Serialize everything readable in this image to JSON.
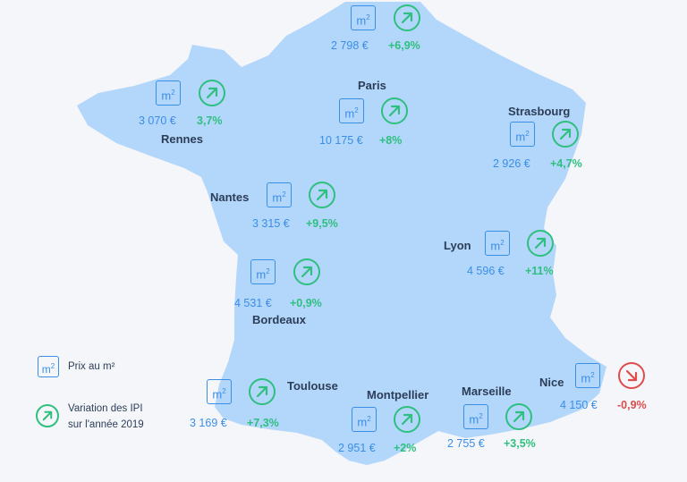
{
  "colors": {
    "map_fill": "#b3d6fb",
    "price": "#3a8ee6",
    "up": "#2fbf7f",
    "down": "#e04b4b",
    "text": "#2c3e57"
  },
  "cities": [
    {
      "id": "lille",
      "name": "",
      "price": "2 798 €",
      "variation": "+6,9%",
      "trend": "up"
    },
    {
      "id": "rennes",
      "name": "Rennes",
      "price": "3 070 €",
      "variation": "3,7%",
      "trend": "up"
    },
    {
      "id": "paris",
      "name": "Paris",
      "price": "10 175 €",
      "variation": "+8%",
      "trend": "up"
    },
    {
      "id": "strasbourg",
      "name": "Strasbourg",
      "price": "2 926 €",
      "variation": "+4,7%",
      "trend": "up"
    },
    {
      "id": "nantes",
      "name": "Nantes",
      "price": "3 315 €",
      "variation": "+9,5%",
      "trend": "up"
    },
    {
      "id": "lyon",
      "name": "Lyon",
      "price": "4 596 €",
      "variation": "+11%",
      "trend": "up"
    },
    {
      "id": "bordeaux",
      "name": "Bordeaux",
      "price": "4 531 €",
      "variation": "+0,9%",
      "trend": "up"
    },
    {
      "id": "toulouse",
      "name": "Toulouse",
      "price": "3 169 €",
      "variation": "+7,3%",
      "trend": "up"
    },
    {
      "id": "montpellier",
      "name": "Montpellier",
      "price": "2 951 €",
      "variation": "+2%",
      "trend": "up"
    },
    {
      "id": "marseille",
      "name": "Marseille",
      "price": "2 755 €",
      "variation": "+3,5%",
      "trend": "up"
    },
    {
      "id": "nice",
      "name": "Nice",
      "price": "4 150 €",
      "variation": "-0,9%",
      "trend": "down"
    }
  ],
  "legend": {
    "m2_label": "Prix au m²",
    "variation_line1": "Variation des IPI",
    "variation_line2": "sur l'année 2019"
  },
  "icons": {
    "m2_icon_text": "m",
    "m2_icon_sup": "2"
  }
}
